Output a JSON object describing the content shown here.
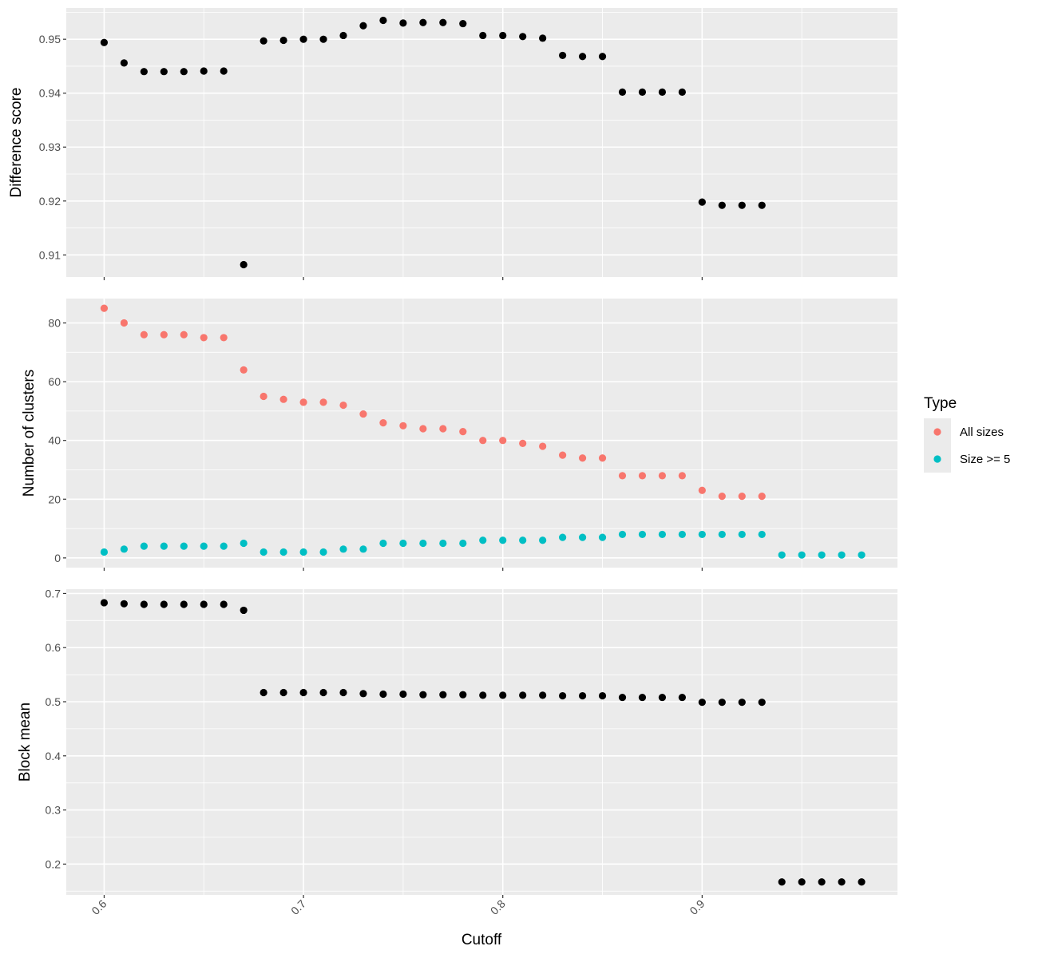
{
  "chart_data": {
    "type": "scatter",
    "xlabel": "Cutoff",
    "x_ticks": [
      "0.6",
      "0.7",
      "0.8",
      "0.9"
    ],
    "x_tick_values": [
      0.6,
      0.7,
      0.8,
      0.9
    ],
    "xlim": [
      0.581,
      0.998
    ],
    "panel_background": "#EBEBEB",
    "grid": true,
    "legend": {
      "title": "Type",
      "placement": "right",
      "entries": [
        {
          "label": "All sizes",
          "color": "#F8766D"
        },
        {
          "label": "Size >= 5",
          "color": "#00BFC4"
        }
      ]
    },
    "panels": [
      {
        "ylabel": "Difference score",
        "ylim": [
          0.9059,
          0.9558
        ],
        "y_ticks": [
          "0.91",
          "0.92",
          "0.93",
          "0.94",
          "0.95"
        ],
        "y_tick_values": [
          0.91,
          0.92,
          0.93,
          0.94,
          0.95
        ],
        "series": [
          {
            "color": "#000000",
            "x": [
              0.6,
              0.61,
              0.62,
              0.63,
              0.64,
              0.65,
              0.66,
              0.67,
              0.68,
              0.69,
              0.7,
              0.71,
              0.72,
              0.73,
              0.74,
              0.75,
              0.76,
              0.77,
              0.78,
              0.79,
              0.8,
              0.81,
              0.82,
              0.83,
              0.84,
              0.85,
              0.86,
              0.87,
              0.88,
              0.89,
              0.9,
              0.91,
              0.92,
              0.93
            ],
            "y": [
              0.9494,
              0.9456,
              0.944,
              0.944,
              0.944,
              0.9441,
              0.9441,
              0.9082,
              0.9497,
              0.9498,
              0.95,
              0.95,
              0.9507,
              0.9525,
              0.9535,
              0.953,
              0.9531,
              0.9531,
              0.9529,
              0.9507,
              0.9507,
              0.9505,
              0.9502,
              0.947,
              0.9468,
              0.9468,
              0.9402,
              0.9402,
              0.9402,
              0.9402,
              0.9198,
              0.9192,
              0.9192,
              0.9192
            ]
          }
        ]
      },
      {
        "ylabel": "Number of clusters",
        "ylim": [
          -3.3,
          88.3
        ],
        "y_ticks": [
          "0",
          "20",
          "40",
          "60",
          "80"
        ],
        "y_tick_values": [
          0,
          20,
          40,
          60,
          80
        ],
        "series": [
          {
            "name": "All sizes",
            "color": "#F8766D",
            "x": [
              0.6,
              0.61,
              0.62,
              0.63,
              0.64,
              0.65,
              0.66,
              0.67,
              0.68,
              0.69,
              0.7,
              0.71,
              0.72,
              0.73,
              0.74,
              0.75,
              0.76,
              0.77,
              0.78,
              0.79,
              0.8,
              0.81,
              0.82,
              0.83,
              0.84,
              0.85,
              0.86,
              0.87,
              0.88,
              0.89,
              0.9,
              0.91,
              0.92,
              0.93
            ],
            "y": [
              85,
              80,
              76,
              76,
              76,
              75,
              75,
              64,
              55,
              54,
              53,
              53,
              52,
              49,
              46,
              45,
              44,
              44,
              43,
              40,
              40,
              39,
              38,
              35,
              34,
              34,
              28,
              28,
              28,
              28,
              23,
              21,
              21,
              21
            ]
          },
          {
            "name": "Size >= 5",
            "color": "#00BFC4",
            "x": [
              0.6,
              0.61,
              0.62,
              0.63,
              0.64,
              0.65,
              0.66,
              0.67,
              0.68,
              0.69,
              0.7,
              0.71,
              0.72,
              0.73,
              0.74,
              0.75,
              0.76,
              0.77,
              0.78,
              0.79,
              0.8,
              0.81,
              0.82,
              0.83,
              0.84,
              0.85,
              0.86,
              0.87,
              0.88,
              0.89,
              0.9,
              0.91,
              0.92,
              0.93,
              0.94,
              0.95,
              0.96,
              0.97,
              0.98
            ],
            "y": [
              2,
              3,
              4,
              4,
              4,
              4,
              4,
              5,
              2,
              2,
              2,
              2,
              3,
              3,
              5,
              5,
              5,
              5,
              5,
              6,
              6,
              6,
              6,
              7,
              7,
              7,
              8,
              8,
              8,
              8,
              8,
              8,
              8,
              8,
              1,
              1,
              1,
              1,
              1
            ]
          }
        ]
      },
      {
        "ylabel": "Block mean",
        "ylim": [
          0.143,
          0.708
        ],
        "y_ticks": [
          "0.2",
          "0.3",
          "0.4",
          "0.5",
          "0.6",
          "0.7"
        ],
        "y_tick_values": [
          0.2,
          0.3,
          0.4,
          0.5,
          0.6,
          0.7
        ],
        "series": [
          {
            "color": "#000000",
            "x": [
              0.6,
              0.61,
              0.62,
              0.63,
              0.64,
              0.65,
              0.66,
              0.67,
              0.68,
              0.69,
              0.7,
              0.71,
              0.72,
              0.73,
              0.74,
              0.75,
              0.76,
              0.77,
              0.78,
              0.79,
              0.8,
              0.81,
              0.82,
              0.83,
              0.84,
              0.85,
              0.86,
              0.87,
              0.88,
              0.89,
              0.9,
              0.91,
              0.92,
              0.93,
              0.94,
              0.95,
              0.96,
              0.97,
              0.98
            ],
            "y": [
              0.683,
              0.681,
              0.68,
              0.68,
              0.68,
              0.68,
              0.68,
              0.669,
              0.517,
              0.517,
              0.517,
              0.517,
              0.517,
              0.515,
              0.514,
              0.514,
              0.513,
              0.513,
              0.513,
              0.512,
              0.512,
              0.512,
              0.512,
              0.511,
              0.511,
              0.511,
              0.508,
              0.508,
              0.508,
              0.508,
              0.499,
              0.499,
              0.499,
              0.499,
              0.167,
              0.167,
              0.167,
              0.167,
              0.167
            ]
          }
        ]
      }
    ]
  }
}
